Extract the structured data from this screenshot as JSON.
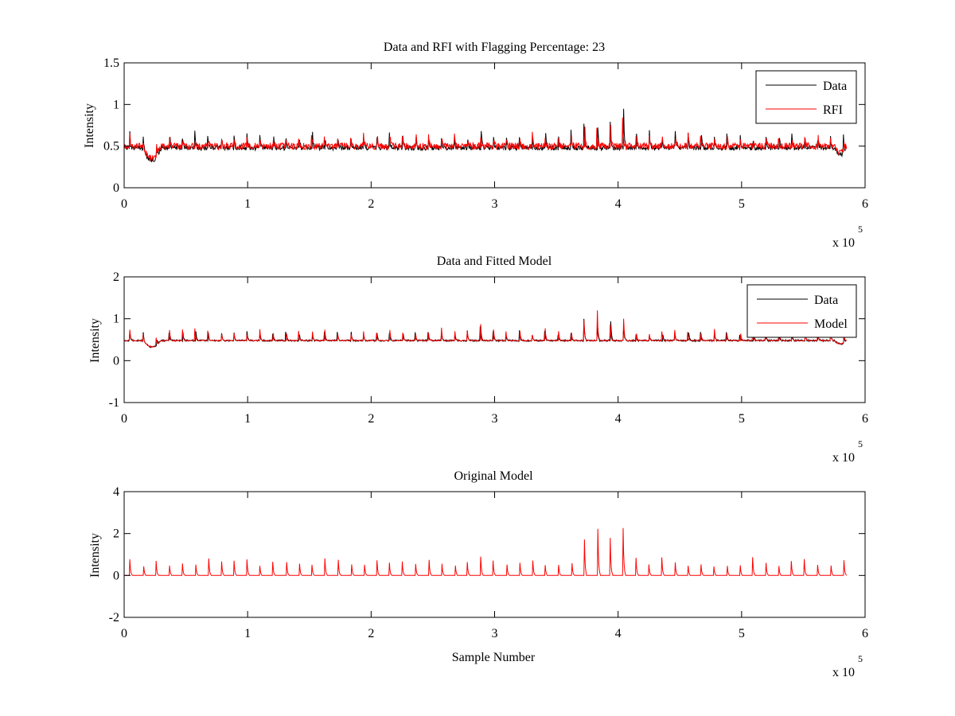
{
  "figure": {
    "background": "#ffffff"
  },
  "chart_data": [
    {
      "type": "line",
      "title": "Data and RFI with Flagging Percentage: 23",
      "xlabel": "",
      "ylabel": "Intensity",
      "xlim": [
        0,
        6
      ],
      "ylim": [
        0,
        1.5
      ],
      "xticks": [
        "0",
        "1",
        "2",
        "3",
        "4",
        "5",
        "6"
      ],
      "yticks": [
        "0",
        "0.5",
        "1",
        "1.5"
      ],
      "xscale_label": "x 10",
      "xscale_exp": "5",
      "legend_position": "top-right",
      "series": [
        {
          "name": "Data",
          "color": "#000000",
          "baseline": 0.48,
          "spike_amp": 0.2,
          "noise": 0.03
        },
        {
          "name": "RFI",
          "color": "#ff0000",
          "baseline": 0.5,
          "spike_amp": 0.15,
          "noise": 0.04
        }
      ],
      "grid": false
    },
    {
      "type": "line",
      "title": "Data and Fitted Model",
      "xlabel": "",
      "ylabel": "Intensity",
      "xlim": [
        0,
        6
      ],
      "ylim": [
        -1,
        2
      ],
      "xticks": [
        "0",
        "1",
        "2",
        "3",
        "4",
        "5",
        "6"
      ],
      "yticks": [
        "-1",
        "0",
        "1",
        "2"
      ],
      "xscale_label": "x 10",
      "xscale_exp": "5",
      "legend_position": "top-right",
      "series": [
        {
          "name": "Data",
          "color": "#000000",
          "baseline": 0.48,
          "spike_amp": 0.25,
          "noise": 0.02
        },
        {
          "name": "Model",
          "color": "#ff0000",
          "baseline": 0.48,
          "spike_amp": 0.3,
          "noise": 0.01
        }
      ],
      "grid": false
    },
    {
      "type": "line",
      "title": "Original Model",
      "xlabel": "Sample Number",
      "ylabel": "Intensity",
      "xlim": [
        0,
        6
      ],
      "ylim": [
        -2,
        4
      ],
      "xticks": [
        "0",
        "1",
        "2",
        "3",
        "4",
        "5",
        "6"
      ],
      "yticks": [
        "-2",
        "0",
        "2",
        "4"
      ],
      "xscale_label": "x 10",
      "xscale_exp": "5",
      "legend_position": "none",
      "series": [
        {
          "name": "",
          "color": "#ff0000",
          "baseline": 0.0,
          "spike_amp": 0.9,
          "noise": 0.0
        }
      ],
      "grid": false
    }
  ]
}
